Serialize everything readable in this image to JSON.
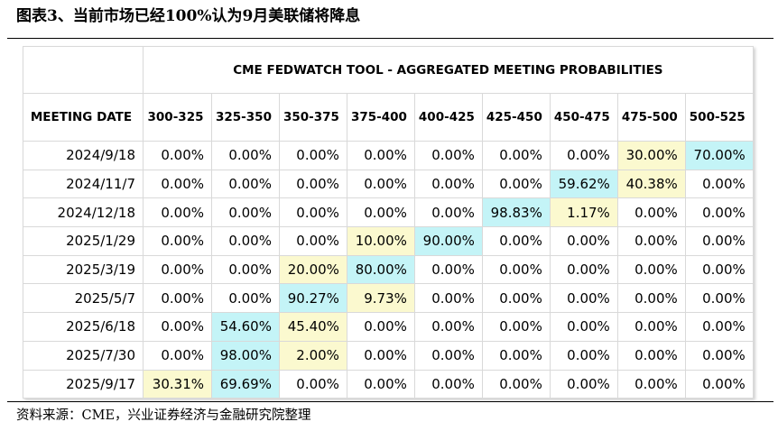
{
  "figure_title": "图表3、当前市场已经100%认为9月美联储将降息",
  "source_note": "资料来源：CME，兴业证券经济与金融研究院整理",
  "table": {
    "banner": "CME FEDWATCH TOOL - AGGREGATED MEETING PROBABILITIES",
    "date_header": "MEETING DATE",
    "columns": [
      "300-325",
      "325-350",
      "350-375",
      "375-400",
      "400-425",
      "425-450",
      "450-475",
      "475-500",
      "500-525"
    ],
    "colors": {
      "cyan_highlight": "#c4f4f7",
      "yellow_highlight": "#fbf9cf"
    },
    "rows": [
      {
        "date": "2024/9/18",
        "values": [
          "0.00%",
          "0.00%",
          "0.00%",
          "0.00%",
          "0.00%",
          "0.00%",
          "0.00%",
          "30.00%",
          "70.00%"
        ],
        "hl": [
          "",
          "",
          "",
          "",
          "",
          "",
          "",
          "y",
          "c"
        ]
      },
      {
        "date": "2024/11/7",
        "values": [
          "0.00%",
          "0.00%",
          "0.00%",
          "0.00%",
          "0.00%",
          "0.00%",
          "59.62%",
          "40.38%",
          "0.00%"
        ],
        "hl": [
          "",
          "",
          "",
          "",
          "",
          "",
          "c",
          "y",
          ""
        ]
      },
      {
        "date": "2024/12/18",
        "values": [
          "0.00%",
          "0.00%",
          "0.00%",
          "0.00%",
          "0.00%",
          "98.83%",
          "1.17%",
          "0.00%",
          "0.00%"
        ],
        "hl": [
          "",
          "",
          "",
          "",
          "",
          "c",
          "y",
          "",
          ""
        ]
      },
      {
        "date": "2025/1/29",
        "values": [
          "0.00%",
          "0.00%",
          "0.00%",
          "10.00%",
          "90.00%",
          "0.00%",
          "0.00%",
          "0.00%",
          "0.00%"
        ],
        "hl": [
          "",
          "",
          "",
          "y",
          "c",
          "",
          "",
          "",
          ""
        ]
      },
      {
        "date": "2025/3/19",
        "values": [
          "0.00%",
          "0.00%",
          "20.00%",
          "80.00%",
          "0.00%",
          "0.00%",
          "0.00%",
          "0.00%",
          "0.00%"
        ],
        "hl": [
          "",
          "",
          "y",
          "c",
          "",
          "",
          "",
          "",
          ""
        ]
      },
      {
        "date": "2025/5/7",
        "values": [
          "0.00%",
          "0.00%",
          "90.27%",
          "9.73%",
          "0.00%",
          "0.00%",
          "0.00%",
          "0.00%",
          "0.00%"
        ],
        "hl": [
          "",
          "",
          "c",
          "y",
          "",
          "",
          "",
          "",
          ""
        ]
      },
      {
        "date": "2025/6/18",
        "values": [
          "0.00%",
          "54.60%",
          "45.40%",
          "0.00%",
          "0.00%",
          "0.00%",
          "0.00%",
          "0.00%",
          "0.00%"
        ],
        "hl": [
          "",
          "c",
          "y",
          "",
          "",
          "",
          "",
          "",
          ""
        ]
      },
      {
        "date": "2025/7/30",
        "values": [
          "0.00%",
          "98.00%",
          "2.00%",
          "0.00%",
          "0.00%",
          "0.00%",
          "0.00%",
          "0.00%",
          "0.00%"
        ],
        "hl": [
          "",
          "c",
          "y",
          "",
          "",
          "",
          "",
          "",
          ""
        ]
      },
      {
        "date": "2025/9/17",
        "values": [
          "30.31%",
          "69.69%",
          "0.00%",
          "0.00%",
          "0.00%",
          "0.00%",
          "0.00%",
          "0.00%",
          "0.00%"
        ],
        "hl": [
          "y",
          "c",
          "",
          "",
          "",
          "",
          "",
          "",
          ""
        ]
      }
    ]
  }
}
